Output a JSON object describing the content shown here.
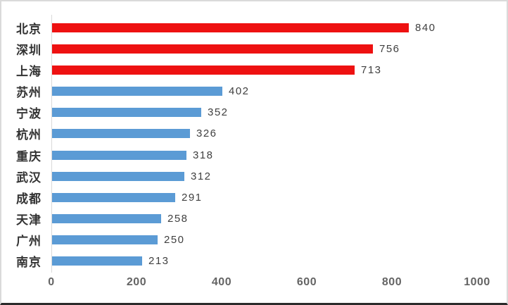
{
  "frame": {
    "background": "#ffffff",
    "border_color": "#dadada",
    "bottom_edge_color": "#2b2b2b"
  },
  "chart_data": {
    "type": "bar",
    "orientation": "horizontal",
    "title": "",
    "xlabel": "",
    "ylabel": "",
    "categories": [
      "北京",
      "深圳",
      "上海",
      "苏州",
      "宁波",
      "杭州",
      "重庆",
      "武汉",
      "成都",
      "天津",
      "广州",
      "南京"
    ],
    "values": [
      840,
      756,
      713,
      402,
      352,
      326,
      318,
      312,
      291,
      258,
      250,
      213
    ],
    "bar_colors": [
      "#ee1111",
      "#ee1111",
      "#ee1111",
      "#5b9bd5",
      "#5b9bd5",
      "#5b9bd5",
      "#5b9bd5",
      "#5b9bd5",
      "#5b9bd5",
      "#5b9bd5",
      "#5b9bd5",
      "#5b9bd5"
    ],
    "highlight_color": "#ee1111",
    "base_color": "#5b9bd5",
    "data_labels_shown": true,
    "xlim": [
      0,
      1000
    ],
    "x_ticks": [
      0,
      200,
      400,
      600,
      800,
      1000
    ],
    "grid": false,
    "legend": false,
    "axis_line_color": "#d9d9d9",
    "category_label_color": "#333333",
    "value_label_color": "#3f3f3f",
    "tick_label_color": "#646464"
  }
}
